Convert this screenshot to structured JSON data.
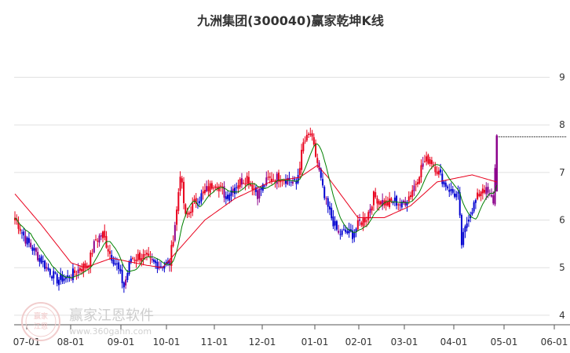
{
  "chart_data": {
    "type": "candlestick",
    "title": "九洲集团(300040)赢家乾坤K线",
    "x_tick_labels": [
      "07-01",
      "08-01",
      "09-01",
      "10-01",
      "11-01",
      "12-01",
      "01-01",
      "02-01",
      "03-01",
      "04-01",
      "05-01",
      "06-01"
    ],
    "y_tick_labels": [
      "4",
      "5",
      "6",
      "7",
      "8",
      "9"
    ],
    "ylim": [
      3.8,
      9.8
    ],
    "grid": "horizontal",
    "colors": {
      "up": "#e8001c",
      "down": "#0000d0",
      "neutral": "#8b008b",
      "ma_short": "#008000",
      "ma_long": "#e8001c",
      "grid": "#e0e0e0"
    },
    "close_anchors": [
      [
        0,
        6.05
      ],
      [
        6,
        5.6
      ],
      [
        12,
        5.3
      ],
      [
        18,
        5.0
      ],
      [
        24,
        4.75
      ],
      [
        30,
        4.8
      ],
      [
        36,
        4.95
      ],
      [
        42,
        5.1
      ],
      [
        46,
        5.6
      ],
      [
        50,
        5.7
      ],
      [
        54,
        5.3
      ],
      [
        58,
        5.05
      ],
      [
        62,
        4.6
      ],
      [
        66,
        5.2
      ],
      [
        72,
        5.25
      ],
      [
        78,
        5.1
      ],
      [
        84,
        5.05
      ],
      [
        88,
        5.1
      ],
      [
        92,
        6.2
      ],
      [
        94,
        7.0
      ],
      [
        97,
        6.05
      ],
      [
        102,
        6.35
      ],
      [
        108,
        6.6
      ],
      [
        114,
        6.8
      ],
      [
        120,
        6.5
      ],
      [
        126,
        6.75
      ],
      [
        132,
        6.9
      ],
      [
        138,
        6.55
      ],
      [
        144,
        6.85
      ],
      [
        150,
        6.9
      ],
      [
        156,
        6.85
      ],
      [
        160,
        6.75
      ],
      [
        164,
        7.6
      ],
      [
        168,
        7.8
      ],
      [
        172,
        7.2
      ],
      [
        176,
        6.45
      ],
      [
        180,
        6.05
      ],
      [
        184,
        5.7
      ],
      [
        188,
        5.75
      ],
      [
        192,
        5.7
      ],
      [
        196,
        5.95
      ],
      [
        200,
        6.05
      ],
      [
        204,
        6.5
      ],
      [
        208,
        6.4
      ],
      [
        212,
        6.35
      ],
      [
        216,
        6.4
      ],
      [
        220,
        6.3
      ],
      [
        224,
        6.5
      ],
      [
        228,
        6.8
      ],
      [
        232,
        7.2
      ],
      [
        236,
        7.3
      ],
      [
        240,
        7.05
      ],
      [
        244,
        6.8
      ],
      [
        248,
        6.6
      ],
      [
        252,
        6.5
      ],
      [
        254,
        5.5
      ],
      [
        258,
        6.1
      ],
      [
        262,
        6.4
      ],
      [
        266,
        6.7
      ],
      [
        270,
        6.5
      ],
      [
        272,
        6.4
      ],
      [
        274,
        7.75
      ]
    ],
    "ma_long_anchors": [
      [
        0,
        6.55
      ],
      [
        15,
        5.9
      ],
      [
        32,
        5.1
      ],
      [
        40,
        5.0
      ],
      [
        55,
        5.2
      ],
      [
        75,
        5.05
      ],
      [
        84,
        5.0
      ],
      [
        96,
        5.5
      ],
      [
        108,
        6.0
      ],
      [
        125,
        6.45
      ],
      [
        145,
        6.8
      ],
      [
        162,
        6.9
      ],
      [
        172,
        7.15
      ],
      [
        178,
        6.9
      ],
      [
        195,
        6.05
      ],
      [
        210,
        6.05
      ],
      [
        225,
        6.3
      ],
      [
        240,
        6.8
      ],
      [
        260,
        6.95
      ],
      [
        274,
        6.8
      ]
    ],
    "last_price_line": 7.75,
    "watermark": {
      "brand": "赢家江恩软件",
      "url": "www.360gann.com",
      "seal_chars": [
        "赢家",
        "江恩"
      ]
    }
  }
}
